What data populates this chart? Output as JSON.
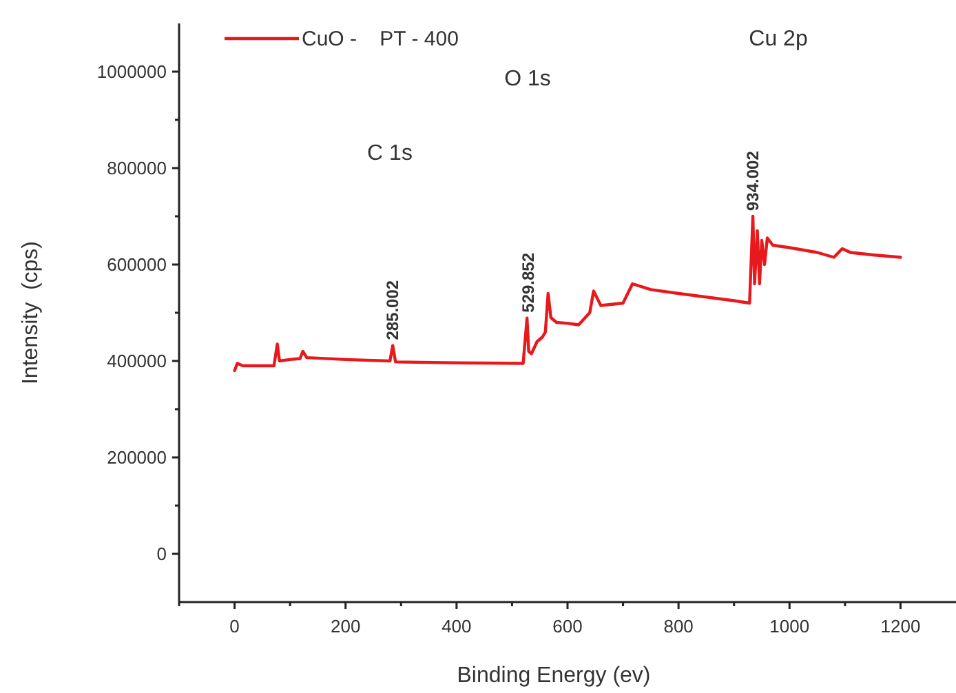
{
  "chart_data": {
    "type": "line",
    "xlabel": "Binding Energy (ev)",
    "ylabel": "Intensity  (cps)",
    "xlim": [
      -100,
      1300
    ],
    "ylim": [
      -100000,
      1100000
    ],
    "xticks": [
      {
        "value": -100,
        "label": null
      },
      0,
      {
        "value": 100,
        "label": null
      },
      200,
      {
        "value": 300,
        "label": null
      },
      400,
      {
        "value": 500,
        "label": null
      },
      600,
      {
        "value": 700,
        "label": null
      },
      800,
      {
        "value": 900,
        "label": null
      },
      1000,
      {
        "value": 1100,
        "label": null
      },
      1200
    ],
    "yticks": [
      0,
      {
        "value": 100000,
        "label": null
      },
      200000,
      {
        "value": 300000,
        "label": null
      },
      400000,
      {
        "value": 500000,
        "label": null
      },
      600000,
      {
        "value": 700000,
        "label": null
      },
      800000,
      {
        "value": 900000,
        "label": null
      },
      1000000
    ],
    "grid": false,
    "legend": "top left",
    "marker": "none",
    "line_style": "solid",
    "series": [
      {
        "name": "CuO -    PT - 400",
        "color": "#e8191c",
        "x": [
          0,
          5,
          15,
          40,
          71,
          77,
          81,
          100,
          118,
          123,
          130,
          200,
          280,
          285,
          290,
          400,
          520,
          527,
          530,
          535,
          545,
          555,
          560,
          565,
          570,
          580,
          600,
          620,
          640,
          647,
          660,
          700,
          717,
          750,
          800,
          900,
          928,
          934,
          937,
          942,
          946,
          950,
          955,
          960,
          970,
          1000,
          1050,
          1080,
          1095,
          1110,
          1150,
          1200
        ],
        "values": [
          380000,
          395000,
          390000,
          390000,
          390000,
          435000,
          400000,
          403000,
          405000,
          420000,
          407000,
          403000,
          400000,
          432000,
          398000,
          396000,
          395000,
          489000,
          420000,
          415000,
          440000,
          450000,
          460000,
          540000,
          490000,
          480000,
          478000,
          475000,
          500000,
          545000,
          515000,
          520000,
          560000,
          548000,
          540000,
          525000,
          520000,
          700000,
          560000,
          670000,
          560000,
          650000,
          600000,
          655000,
          640000,
          635000,
          625000,
          615000,
          633000,
          625000,
          620000,
          615000
        ]
      }
    ],
    "annotations": [
      "C 1s",
      "O 1s",
      "Cu 2p",
      {
        "text": "285.002",
        "x": 285.002,
        "y": 432000
      },
      {
        "text": "529.852",
        "x": 529.852,
        "y": 489000
      },
      {
        "text": "934.002",
        "x": 934.002,
        "y": 700000
      }
    ]
  }
}
